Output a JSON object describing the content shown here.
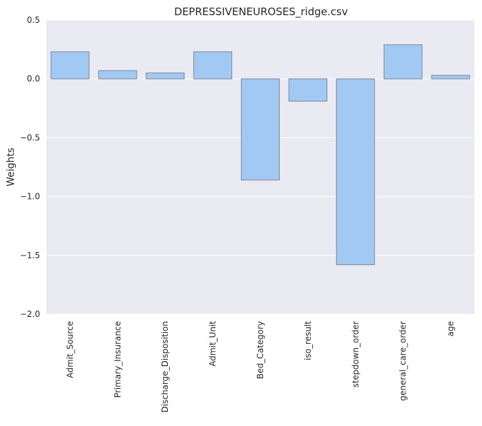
{
  "chart_data": {
    "type": "bar",
    "title": "DEPRESSIVENEUROSES_ridge.csv",
    "xlabel": "",
    "ylabel": "Weights",
    "categories": [
      "Admit_Source",
      "Primary_Insurance",
      "Discharge_Disposition",
      "Admit_Unit",
      "Bed_Category",
      "iso_result",
      "stepdown_order",
      "general_care_order",
      "age"
    ],
    "values": [
      0.23,
      0.07,
      0.05,
      0.23,
      -0.86,
      -0.19,
      -1.58,
      0.29,
      0.03
    ],
    "ylim": [
      -2.0,
      0.5
    ],
    "yticks": [
      0.5,
      0.0,
      -0.5,
      -1.0,
      -1.5,
      -2.0
    ],
    "ytick_labels": [
      "0.5",
      "0.0",
      "−0.5",
      "−1.0",
      "−1.5",
      "−2.0"
    ],
    "grid": true,
    "colors": {
      "plot_background": "#eaeaf2",
      "bar_fill": "#a1c9f4",
      "bar_edge": "#7a8697",
      "grid": "#ffffff"
    }
  }
}
